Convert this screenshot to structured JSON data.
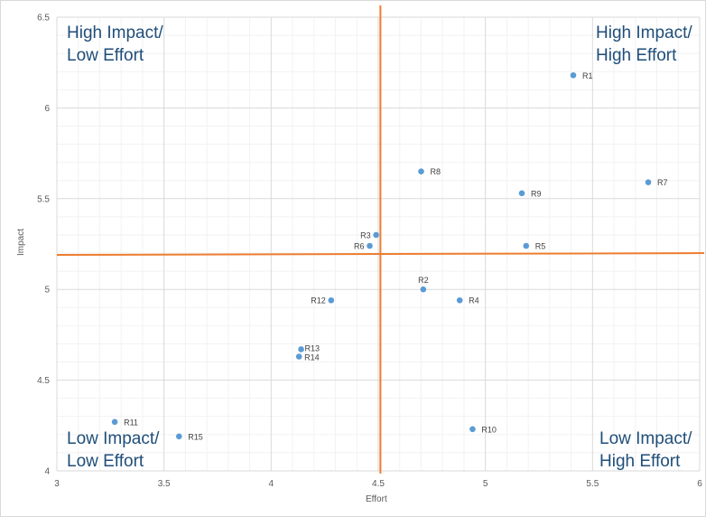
{
  "chart_data": {
    "type": "scatter",
    "title": "",
    "xlabel": "Effort",
    "ylabel": "Impact",
    "xlim": [
      3,
      6
    ],
    "ylim": [
      4,
      6.5
    ],
    "xticks": [
      "3",
      "3.5",
      "4",
      "4.5",
      "5",
      "5.5",
      "6"
    ],
    "yticks": [
      "4",
      "4.5",
      "5",
      "5.5",
      "6",
      "6.5"
    ],
    "grid": true,
    "marker_color": "#5b9bd5",
    "divider_color": "#ed7d31",
    "points": [
      {
        "label": "R1",
        "x": 5.41,
        "y": 6.18
      },
      {
        "label": "R2",
        "x": 4.71,
        "y": 5.0
      },
      {
        "label": "R3",
        "x": 4.49,
        "y": 5.3
      },
      {
        "label": "R4",
        "x": 4.88,
        "y": 4.94
      },
      {
        "label": "R5",
        "x": 5.19,
        "y": 5.24
      },
      {
        "label": "R6",
        "x": 4.46,
        "y": 5.24
      },
      {
        "label": "R7",
        "x": 5.76,
        "y": 5.59
      },
      {
        "label": "R8",
        "x": 4.7,
        "y": 5.65
      },
      {
        "label": "R9",
        "x": 5.17,
        "y": 5.53
      },
      {
        "label": "R10",
        "x": 4.94,
        "y": 4.23
      },
      {
        "label": "R11",
        "x": 3.27,
        "y": 4.27
      },
      {
        "label": "R12",
        "x": 4.28,
        "y": 4.94
      },
      {
        "label": "R13",
        "x": 4.14,
        "y": 4.67
      },
      {
        "label": "R14",
        "x": 4.13,
        "y": 4.63
      },
      {
        "label": "R15",
        "x": 3.57,
        "y": 4.19
      }
    ],
    "vertical_divider": {
      "x": 4.51
    },
    "horizontal_divider": {
      "y_left": 5.19,
      "y_right": 5.2
    },
    "quadrants": {
      "top_left": "High Impact/\nLow Effort",
      "top_right": "High Impact/\nHigh Effort",
      "bottom_left": "Low Impact/\nLow Effort",
      "bottom_right": "Low Impact/\nHigh Effort"
    }
  }
}
